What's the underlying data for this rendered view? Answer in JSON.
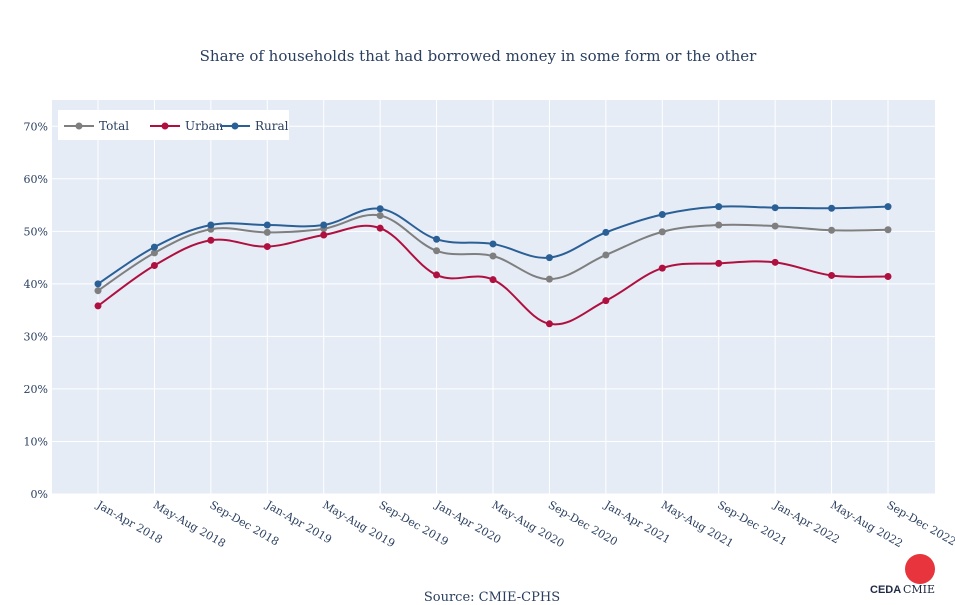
{
  "chart_data": {
    "type": "line",
    "title": "Share of households that had borrowed money in some form or the other",
    "categories": [
      "Jan-Apr 2018",
      "May-Aug 2018",
      "Sep-Dec 2018",
      "Jan-Apr 2019",
      "May-Aug 2019",
      "Sep-Dec 2019",
      "Jan-Apr 2020",
      "May-Aug 2020",
      "Sep-Dec 2020",
      "Jan-Apr 2021",
      "May-Aug 2021",
      "Sep-Dec 2021",
      "Jan-Apr 2022",
      "May-Aug 2022",
      "Sep-Dec 2022"
    ],
    "series": [
      {
        "name": "Total",
        "color": "#7f7f7f",
        "values": [
          38.7,
          45.9,
          50.4,
          49.8,
          50.5,
          53.0,
          46.3,
          45.3,
          40.9,
          45.5,
          49.9,
          51.2,
          51.0,
          50.2,
          50.3
        ]
      },
      {
        "name": "Urban",
        "color": "#b0103f",
        "values": [
          35.8,
          43.5,
          48.3,
          47.1,
          49.3,
          50.6,
          41.7,
          40.8,
          32.4,
          36.8,
          43.0,
          43.9,
          44.1,
          41.6,
          41.4
        ]
      },
      {
        "name": "Rural",
        "color": "#2b6096",
        "values": [
          40.0,
          47.0,
          51.2,
          51.2,
          51.2,
          54.3,
          48.5,
          47.6,
          45.0,
          49.8,
          53.2,
          54.7,
          54.5,
          54.4,
          54.7
        ]
      }
    ],
    "yticks": [
      "0%",
      "10%",
      "20%",
      "30%",
      "40%",
      "50%",
      "60%",
      "70%"
    ],
    "ylim": [
      0,
      75
    ],
    "grid": true,
    "legend_position": "top-left",
    "source": "Source: CMIE-CPHS"
  },
  "logo": {
    "left_text": "CEDA",
    "right_text": "CMIE",
    "dot_color": "#e8343c"
  }
}
